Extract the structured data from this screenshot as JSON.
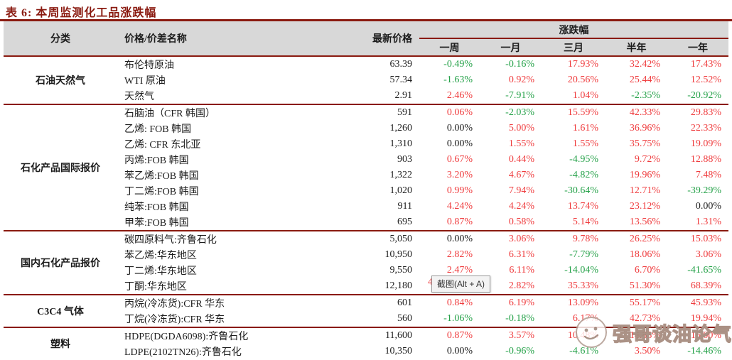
{
  "page_title": "表 6:  本周监测化工品涨跌幅",
  "colors": {
    "accent_maroon": "#8a1a10",
    "up_red": "#ef3b3d",
    "down_green": "#24a148",
    "flat_black": "#1c1c1c",
    "header_bg": "#d8d8d8"
  },
  "table": {
    "headers": {
      "category": "分类",
      "name": "价格/价差名称",
      "latest_price": "最新价格",
      "change_group": "涨跌幅",
      "periods": [
        "一周",
        "一月",
        "三月",
        "半年",
        "一年"
      ]
    },
    "groups": [
      {
        "category": "石油天然气",
        "rows": [
          {
            "name": "布伦特原油",
            "price": "63.39",
            "changes": [
              {
                "v": "-0.49%",
                "c": "g"
              },
              {
                "v": "-0.16%",
                "c": "g"
              },
              {
                "v": "17.93%",
                "c": "r"
              },
              {
                "v": "32.42%",
                "c": "r"
              },
              {
                "v": "17.43%",
                "c": "r"
              }
            ]
          },
          {
            "name": "WTI 原油",
            "price": "57.34",
            "changes": [
              {
                "v": "-1.63%",
                "c": "g"
              },
              {
                "v": "0.92%",
                "c": "r"
              },
              {
                "v": "20.56%",
                "c": "r"
              },
              {
                "v": "25.44%",
                "c": "r"
              },
              {
                "v": "12.52%",
                "c": "r"
              }
            ]
          },
          {
            "name": "天然气",
            "price": "2.91",
            "changes": [
              {
                "v": "2.46%",
                "c": "r"
              },
              {
                "v": "-7.91%",
                "c": "g"
              },
              {
                "v": "1.04%",
                "c": "r"
              },
              {
                "v": "-2.35%",
                "c": "g"
              },
              {
                "v": "-20.92%",
                "c": "g"
              }
            ]
          }
        ]
      },
      {
        "category": "石化产品国际报价",
        "rows": [
          {
            "name": "石脑油（CFR 韩国）",
            "price": "591",
            "changes": [
              {
                "v": "0.06%",
                "c": "r"
              },
              {
                "v": "-2.03%",
                "c": "g"
              },
              {
                "v": "15.59%",
                "c": "r"
              },
              {
                "v": "42.33%",
                "c": "r"
              },
              {
                "v": "29.83%",
                "c": "r"
              }
            ]
          },
          {
            "name": "乙烯:  FOB 韩国",
            "price": "1,260",
            "changes": [
              {
                "v": "0.00%",
                "c": "k"
              },
              {
                "v": "5.00%",
                "c": "r"
              },
              {
                "v": "1.61%",
                "c": "r"
              },
              {
                "v": "36.96%",
                "c": "r"
              },
              {
                "v": "22.33%",
                "c": "r"
              }
            ]
          },
          {
            "name": "乙烯:  CFR 东北亚",
            "price": "1,310",
            "changes": [
              {
                "v": "0.00%",
                "c": "k"
              },
              {
                "v": "1.55%",
                "c": "r"
              },
              {
                "v": "1.55%",
                "c": "r"
              },
              {
                "v": "35.75%",
                "c": "r"
              },
              {
                "v": "19.09%",
                "c": "r"
              }
            ]
          },
          {
            "name": "丙烯:FOB 韩国",
            "price": "903",
            "changes": [
              {
                "v": "0.67%",
                "c": "r"
              },
              {
                "v": "0.44%",
                "c": "r"
              },
              {
                "v": "-4.95%",
                "c": "g"
              },
              {
                "v": "9.72%",
                "c": "r"
              },
              {
                "v": "12.88%",
                "c": "r"
              }
            ]
          },
          {
            "name": "苯乙烯:FOB 韩国",
            "price": "1,322",
            "changes": [
              {
                "v": "3.20%",
                "c": "r"
              },
              {
                "v": "4.67%",
                "c": "r"
              },
              {
                "v": "-4.82%",
                "c": "g"
              },
              {
                "v": "19.96%",
                "c": "r"
              },
              {
                "v": "7.48%",
                "c": "r"
              }
            ]
          },
          {
            "name": "丁二烯:FOB 韩国",
            "price": "1,020",
            "changes": [
              {
                "v": "0.99%",
                "c": "r"
              },
              {
                "v": "7.94%",
                "c": "r"
              },
              {
                "v": "-30.64%",
                "c": "g"
              },
              {
                "v": "12.71%",
                "c": "r"
              },
              {
                "v": "-39.29%",
                "c": "g"
              }
            ]
          },
          {
            "name": "纯苯:FOB 韩国",
            "price": "911",
            "changes": [
              {
                "v": "4.24%",
                "c": "r"
              },
              {
                "v": "4.24%",
                "c": "r"
              },
              {
                "v": "13.74%",
                "c": "r"
              },
              {
                "v": "23.12%",
                "c": "r"
              },
              {
                "v": "0.00%",
                "c": "k"
              }
            ]
          },
          {
            "name": "甲苯:FOB 韩国",
            "price": "695",
            "changes": [
              {
                "v": "0.87%",
                "c": "r"
              },
              {
                "v": "0.58%",
                "c": "r"
              },
              {
                "v": "5.14%",
                "c": "r"
              },
              {
                "v": "13.56%",
                "c": "r"
              },
              {
                "v": "1.31%",
                "c": "r"
              }
            ]
          }
        ]
      },
      {
        "category": "国内石化产品报价",
        "rows": [
          {
            "name": "碳四原料气:齐鲁石化",
            "price": "5,050",
            "changes": [
              {
                "v": "0.00%",
                "c": "k"
              },
              {
                "v": "3.06%",
                "c": "r"
              },
              {
                "v": "9.78%",
                "c": "r"
              },
              {
                "v": "26.25%",
                "c": "r"
              },
              {
                "v": "15.03%",
                "c": "r"
              }
            ]
          },
          {
            "name": "苯乙烯:华东地区",
            "price": "10,950",
            "changes": [
              {
                "v": "2.82%",
                "c": "r"
              },
              {
                "v": "6.31%",
                "c": "r"
              },
              {
                "v": "-7.79%",
                "c": "g"
              },
              {
                "v": "18.06%",
                "c": "r"
              },
              {
                "v": "3.06%",
                "c": "r"
              }
            ]
          },
          {
            "name": "丁二烯:华东地区",
            "price": "9,550",
            "changes": [
              {
                "v": "2.47%",
                "c": "r"
              },
              {
                "v": "6.11%",
                "c": "r"
              },
              {
                "v": "-14.04%",
                "c": "g"
              },
              {
                "v": "6.70%",
                "c": "r"
              },
              {
                "v": "-41.65%",
                "c": "g"
              }
            ]
          },
          {
            "name": "丁酮:华东地区",
            "price": "12,180",
            "changes": [
              {
                "v": "4",
                "c": "r"
              },
              {
                "v": "2.82%",
                "c": "r"
              },
              {
                "v": "35.33%",
                "c": "r"
              },
              {
                "v": "51.30%",
                "c": "r"
              },
              {
                "v": "68.39%",
                "c": "r"
              }
            ]
          }
        ]
      },
      {
        "category": "C3C4 气体",
        "rows": [
          {
            "name": "丙烷(冷冻货):CFR 华东",
            "price": "601",
            "changes": [
              {
                "v": "0.84%",
                "c": "r"
              },
              {
                "v": "6.19%",
                "c": "r"
              },
              {
                "v": "13.09%",
                "c": "r"
              },
              {
                "v": "55.17%",
                "c": "r"
              },
              {
                "v": "45.93%",
                "c": "r"
              }
            ]
          },
          {
            "name": "丁烷(冷冻货):CFR 华东",
            "price": "560",
            "changes": [
              {
                "v": "-1.06%",
                "c": "g"
              },
              {
                "v": "-0.18%",
                "c": "g"
              },
              {
                "v": "6.17%",
                "c": "r"
              },
              {
                "v": "42.73%",
                "c": "r"
              },
              {
                "v": "19.94%",
                "c": "r"
              }
            ]
          }
        ]
      },
      {
        "category": "塑料",
        "rows": [
          {
            "name": "HDPE(DGDA6098):齐鲁石化",
            "price": "11,600",
            "changes": [
              {
                "v": "0.87%",
                "c": "r"
              },
              {
                "v": "3.57%",
                "c": "r"
              },
              {
                "v": "10.48%",
                "c": "r"
              },
              {
                "v": "14.83%",
                "c": "r"
              },
              {
                "v": "16.00%",
                "c": "r"
              }
            ]
          },
          {
            "name": "LDPE(2102TN26):齐鲁石化",
            "price": "10,350",
            "changes": [
              {
                "v": "0.00%",
                "c": "k"
              },
              {
                "v": "-0.96%",
                "c": "g"
              },
              {
                "v": "-4.61%",
                "c": "g"
              },
              {
                "v": "3.50%",
                "c": "r"
              },
              {
                "v": "-14.46%",
                "c": "g"
              }
            ]
          }
        ]
      }
    ]
  },
  "tooltip": {
    "label": "截图(Alt + A)"
  },
  "watermark": {
    "text": "强哥谈油论气",
    "logo": "cartoon-face-logo"
  }
}
